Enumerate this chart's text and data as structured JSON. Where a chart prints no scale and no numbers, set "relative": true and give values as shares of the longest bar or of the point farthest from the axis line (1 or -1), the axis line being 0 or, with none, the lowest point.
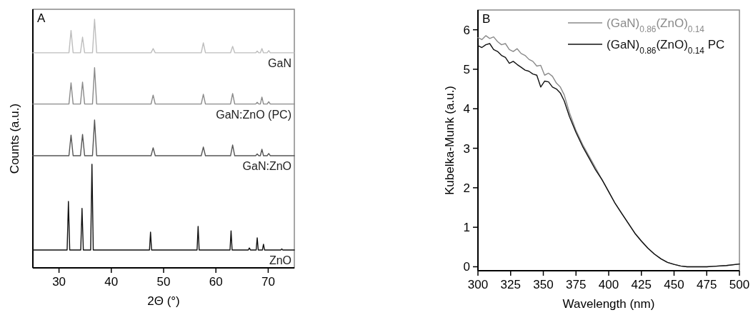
{
  "chart_data": [
    {
      "type": "line",
      "title": "A",
      "xlabel": "2Θ (°)",
      "ylabel": "Counts (a.u.)",
      "relative": true,
      "tick_labels": "x",
      "xlim": [
        25,
        75
      ],
      "xticks": [
        30,
        40,
        50,
        60,
        70
      ],
      "marker": "none",
      "line_style": "solid",
      "series": [
        {
          "name": "GaN",
          "color": "#bdbdbd",
          "x": [
            25,
            31.9,
            32.3,
            32.7,
            34.1,
            34.5,
            34.9,
            36.4,
            36.8,
            37.2,
            47.6,
            48.0,
            48.4,
            57.2,
            57.6,
            58.0,
            62.8,
            63.2,
            63.6,
            67.6,
            67.9,
            68.2,
            68.5,
            68.8,
            69.1,
            69.8,
            70.1,
            70.4,
            75
          ],
          "values": [
            0.865,
            0.865,
            0.955,
            0.865,
            0.865,
            0.928,
            0.865,
            0.865,
            1.0,
            0.865,
            0.865,
            0.882,
            0.865,
            0.865,
            0.905,
            0.865,
            0.865,
            0.891,
            0.865,
            0.865,
            0.872,
            0.865,
            0.865,
            0.882,
            0.865,
            0.865,
            0.874,
            0.865,
            0.865
          ]
        },
        {
          "name": "GaN:ZnO (PC)",
          "color": "#8a8a8a",
          "x": [
            25,
            31.9,
            32.3,
            32.7,
            34.1,
            34.5,
            34.9,
            36.4,
            36.8,
            37.2,
            47.6,
            48.0,
            48.4,
            57.2,
            57.6,
            58.0,
            62.8,
            63.2,
            63.6,
            67.6,
            67.9,
            68.2,
            68.5,
            68.8,
            69.1,
            69.8,
            70.1,
            70.4,
            75
          ],
          "values": [
            0.659,
            0.659,
            0.744,
            0.659,
            0.659,
            0.747,
            0.659,
            0.659,
            0.805,
            0.659,
            0.659,
            0.695,
            0.659,
            0.659,
            0.698,
            0.659,
            0.659,
            0.701,
            0.659,
            0.659,
            0.666,
            0.659,
            0.659,
            0.687,
            0.659,
            0.659,
            0.668,
            0.659,
            0.659
          ]
        },
        {
          "name": "GaN:ZnO",
          "color": "#555555",
          "x": [
            25,
            31.9,
            32.3,
            32.7,
            34.1,
            34.5,
            34.9,
            36.4,
            36.8,
            37.2,
            47.6,
            48.0,
            48.4,
            57.2,
            57.6,
            58.0,
            62.8,
            63.2,
            63.6,
            67.6,
            67.9,
            68.2,
            68.5,
            68.8,
            69.1,
            69.8,
            70.1,
            70.4,
            75
          ],
          "values": [
            0.451,
            0.451,
            0.534,
            0.451,
            0.451,
            0.537,
            0.451,
            0.451,
            0.595,
            0.451,
            0.451,
            0.483,
            0.451,
            0.451,
            0.486,
            0.451,
            0.451,
            0.494,
            0.451,
            0.451,
            0.458,
            0.451,
            0.451,
            0.477,
            0.451,
            0.451,
            0.46,
            0.451,
            0.451
          ]
        },
        {
          "name": "ZnO",
          "color": "#111111",
          "x": [
            25,
            31.55,
            31.8,
            32.05,
            34.15,
            34.4,
            34.65,
            36.05,
            36.3,
            36.55,
            47.3,
            47.5,
            47.7,
            56.4,
            56.6,
            56.8,
            62.7,
            62.9,
            63.1,
            66.2,
            66.4,
            66.6,
            67.7,
            67.9,
            68.1,
            68.9,
            69.1,
            69.3,
            72.4,
            72.6,
            72.8,
            75
          ],
          "values": [
            0.072,
            0.072,
            0.267,
            0.072,
            0.072,
            0.239,
            0.072,
            0.072,
            0.417,
            0.072,
            0.072,
            0.144,
            0.072,
            0.072,
            0.167,
            0.072,
            0.072,
            0.149,
            0.072,
            0.072,
            0.08,
            0.072,
            0.072,
            0.121,
            0.072,
            0.072,
            0.095,
            0.072,
            0.072,
            0.076,
            0.072,
            0.072
          ]
        }
      ]
    },
    {
      "type": "line",
      "title": "B",
      "xlabel": "Wavelength (nm)",
      "ylabel": "Kubelka-Munk (a.u.)",
      "xlim": [
        300,
        500
      ],
      "ylim": [
        -0.1,
        6.5
      ],
      "xticks": [
        300,
        325,
        350,
        375,
        400,
        425,
        450,
        475,
        500
      ],
      "yticks": [
        0,
        1,
        2,
        3,
        4,
        5,
        6
      ],
      "legend": "top right",
      "marker": "none",
      "line_style": "solid",
      "series": [
        {
          "name": "(GaN)$_{0.86}$(ZnO)$_{0.14}$",
          "color": "#8a8a8a",
          "x": [
            300,
            303,
            306,
            309,
            312,
            315,
            318,
            321,
            324,
            327,
            330,
            333,
            336,
            339,
            342,
            345,
            348,
            351,
            354,
            357,
            360,
            363,
            366,
            370,
            375,
            380,
            385,
            390,
            395,
            400,
            405,
            410,
            415,
            420,
            425,
            430,
            435,
            440,
            445,
            450,
            455,
            460,
            465,
            470,
            475,
            480,
            490,
            500
          ],
          "values": [
            5.8,
            5.75,
            5.85,
            5.78,
            5.82,
            5.7,
            5.62,
            5.65,
            5.5,
            5.45,
            5.52,
            5.4,
            5.35,
            5.25,
            5.2,
            5.08,
            5.1,
            4.85,
            4.9,
            4.82,
            4.65,
            4.55,
            4.35,
            3.9,
            3.45,
            3.1,
            2.8,
            2.5,
            2.2,
            1.9,
            1.6,
            1.35,
            1.1,
            0.85,
            0.65,
            0.47,
            0.32,
            0.2,
            0.11,
            0.06,
            0.02,
            0.0,
            0.0,
            0.0,
            0.0,
            0.01,
            0.03,
            0.07
          ]
        },
        {
          "name": "(GaN)$_{0.86}$(ZnO)$_{0.14}$ PC",
          "color": "#111111",
          "x": [
            300,
            303,
            306,
            309,
            312,
            315,
            318,
            321,
            324,
            327,
            330,
            333,
            336,
            339,
            342,
            345,
            348,
            351,
            354,
            357,
            360,
            363,
            366,
            370,
            375,
            380,
            385,
            390,
            395,
            400,
            405,
            410,
            415,
            420,
            425,
            430,
            435,
            440,
            445,
            450,
            455,
            460,
            465,
            470,
            475,
            480,
            490,
            500
          ],
          "values": [
            5.6,
            5.55,
            5.62,
            5.65,
            5.5,
            5.45,
            5.35,
            5.3,
            5.15,
            5.2,
            5.12,
            5.05,
            4.98,
            4.95,
            4.88,
            4.85,
            4.55,
            4.7,
            4.68,
            4.55,
            4.5,
            4.4,
            4.2,
            3.8,
            3.4,
            3.05,
            2.75,
            2.45,
            2.2,
            1.9,
            1.6,
            1.35,
            1.1,
            0.85,
            0.65,
            0.47,
            0.32,
            0.2,
            0.11,
            0.06,
            0.02,
            0.0,
            0.0,
            0.0,
            0.0,
            0.01,
            0.03,
            0.07
          ]
        }
      ]
    }
  ]
}
